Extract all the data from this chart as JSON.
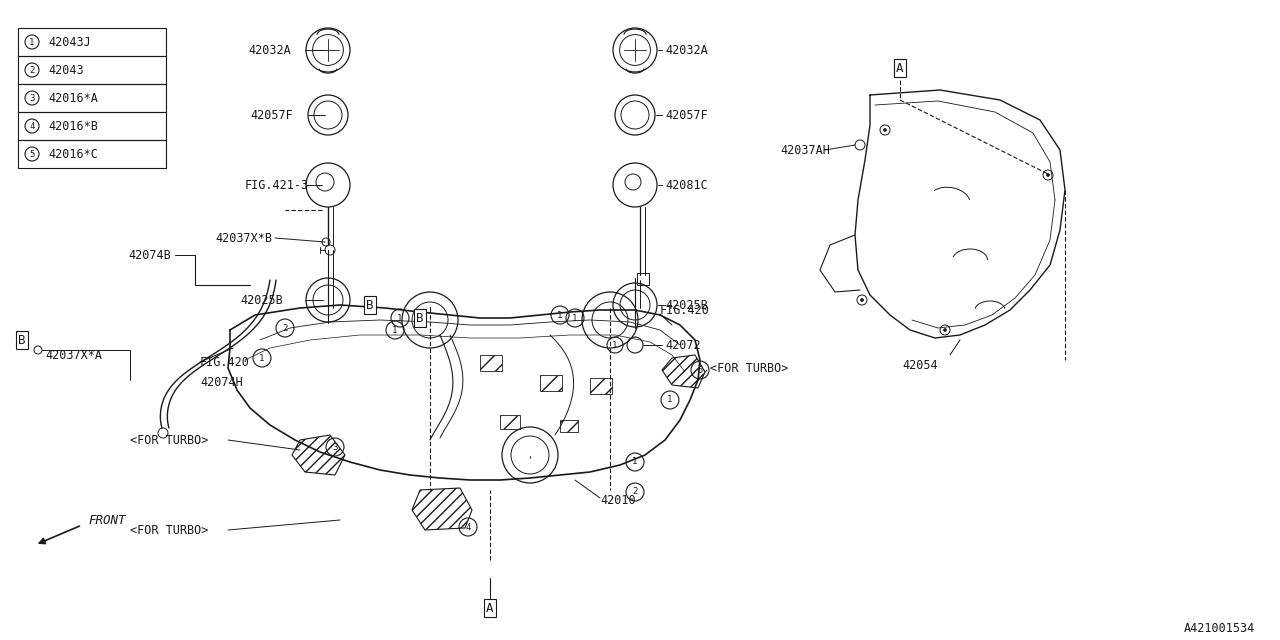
{
  "bg_color": "#ffffff",
  "line_color": "#1a1a1a",
  "diagram_ref": "A421001534",
  "legend_items": [
    {
      "num": "1",
      "code": "42043J"
    },
    {
      "num": "2",
      "code": "42043"
    },
    {
      "num": "3",
      "code": "42016*A"
    },
    {
      "num": "4",
      "code": "42016*B"
    },
    {
      "num": "5",
      "code": "42016*C"
    }
  ]
}
